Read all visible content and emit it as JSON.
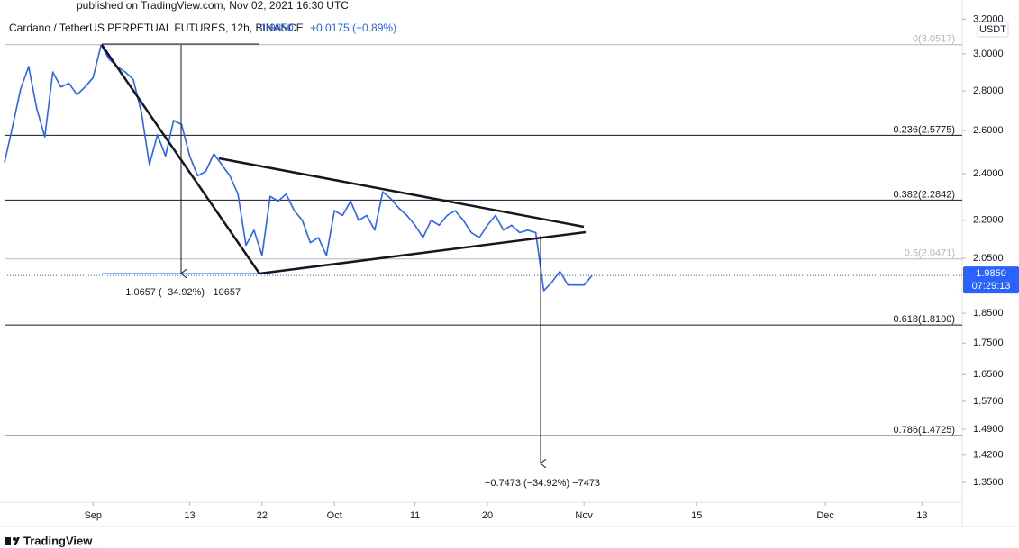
{
  "chart_data": {
    "type": "line",
    "published": "published on TradingView.com, Nov 02, 2021 16:30 UTC",
    "title": "Cardano / TetherUS PERPETUAL FUTURES, 12h, BINANCE",
    "last_price": {
      "value": 1.985,
      "label": "1.9850"
    },
    "change": "+0.0175 (+0.89%)",
    "currency": "USDT",
    "countdown": "07:29:13",
    "brand": "TradingView",
    "log_scale": true,
    "ylim": [
      1.301,
      3.262
    ],
    "yticks": [
      {
        "value": 3.2,
        "label": "3.2000"
      },
      {
        "value": 3.0,
        "label": "3.0000"
      },
      {
        "value": 2.8,
        "label": "2.8000"
      },
      {
        "value": 2.6,
        "label": "2.6000"
      },
      {
        "value": 2.4,
        "label": "2.4000"
      },
      {
        "value": 2.2,
        "label": "2.2000"
      },
      {
        "value": 2.05,
        "label": "2.0500"
      },
      {
        "value": 1.85,
        "label": "1.8500"
      },
      {
        "value": 1.75,
        "label": "1.7500"
      },
      {
        "value": 1.65,
        "label": "1.6500"
      },
      {
        "value": 1.57,
        "label": "1.5700"
      },
      {
        "value": 1.49,
        "label": "1.4900"
      },
      {
        "value": 1.42,
        "label": "1.4200"
      },
      {
        "value": 1.35,
        "label": "1.3500"
      }
    ],
    "xlim": [
      "2021-08-21",
      "2021-12-18"
    ],
    "xticks": [
      {
        "value": "2021-09-01",
        "label": "Sep"
      },
      {
        "value": "2021-09-13",
        "label": "13"
      },
      {
        "value": "2021-09-22",
        "label": "22"
      },
      {
        "value": "2021-10-01",
        "label": "Oct"
      },
      {
        "value": "2021-10-11",
        "label": "11"
      },
      {
        "value": "2021-10-20",
        "label": "20"
      },
      {
        "value": "2021-11-01",
        "label": "Nov"
      },
      {
        "value": "2021-11-15",
        "label": "15"
      },
      {
        "value": "2021-12-01",
        "label": "Dec"
      },
      {
        "value": "2021-12-13",
        "label": "13"
      }
    ],
    "fib_levels": [
      {
        "value": 3.0517,
        "label": "0(3.0517)",
        "color": "#b2b5be"
      },
      {
        "value": 2.5775,
        "label": "0.236(2.5775)",
        "color": "#131722"
      },
      {
        "value": 2.2842,
        "label": "0.382(2.2842)",
        "color": "#131722"
      },
      {
        "value": 2.0471,
        "label": "0.5(2.0471)",
        "color": "#b2b5be"
      },
      {
        "value": 1.81,
        "label": "0.618(1.8100)",
        "color": "#131722"
      },
      {
        "value": 1.4725,
        "label": "0.786(1.4725)",
        "color": "#131722"
      }
    ],
    "annotations": [
      "−1.0657 (−34.92%) −10657",
      "−0.7473 (−34.92%) −7473"
    ],
    "series": [
      {
        "name": "Cardano / TetherUS",
        "color": "#2962ff",
        "x": [
          "2021-08-21",
          "2021-08-22",
          "2021-08-23",
          "2021-08-24",
          "2021-08-25",
          "2021-08-26",
          "2021-08-27",
          "2021-08-28",
          "2021-08-29",
          "2021-08-30",
          "2021-08-31",
          "2021-09-01",
          "2021-09-02",
          "2021-09-03",
          "2021-09-04",
          "2021-09-05",
          "2021-09-06",
          "2021-09-07",
          "2021-09-08",
          "2021-09-09",
          "2021-09-10",
          "2021-09-11",
          "2021-09-12",
          "2021-09-13",
          "2021-09-14",
          "2021-09-15",
          "2021-09-16",
          "2021-09-17",
          "2021-09-18",
          "2021-09-19",
          "2021-09-20",
          "2021-09-21",
          "2021-09-22",
          "2021-09-23",
          "2021-09-24",
          "2021-09-25",
          "2021-09-26",
          "2021-09-27",
          "2021-09-28",
          "2021-09-29",
          "2021-09-30",
          "2021-10-01",
          "2021-10-02",
          "2021-10-03",
          "2021-10-04",
          "2021-10-05",
          "2021-10-06",
          "2021-10-07",
          "2021-10-08",
          "2021-10-09",
          "2021-10-10",
          "2021-10-11",
          "2021-10-12",
          "2021-10-13",
          "2021-10-14",
          "2021-10-15",
          "2021-10-16",
          "2021-10-17",
          "2021-10-18",
          "2021-10-19",
          "2021-10-20",
          "2021-10-21",
          "2021-10-22",
          "2021-10-23",
          "2021-10-24",
          "2021-10-25",
          "2021-10-26",
          "2021-10-27",
          "2021-10-28",
          "2021-10-29",
          "2021-10-30",
          "2021-10-31",
          "2021-11-01",
          "2021-11-02"
        ],
        "values": [
          2.45,
          2.62,
          2.81,
          2.93,
          2.71,
          2.57,
          2.9,
          2.82,
          2.84,
          2.78,
          2.82,
          2.87,
          3.05,
          2.97,
          2.93,
          2.9,
          2.86,
          2.69,
          2.44,
          2.58,
          2.48,
          2.65,
          2.63,
          2.48,
          2.39,
          2.41,
          2.49,
          2.44,
          2.39,
          2.31,
          2.1,
          2.16,
          2.06,
          2.3,
          2.28,
          2.31,
          2.24,
          2.2,
          2.11,
          2.13,
          2.06,
          2.24,
          2.22,
          2.28,
          2.2,
          2.22,
          2.16,
          2.32,
          2.29,
          2.25,
          2.22,
          2.18,
          2.13,
          2.2,
          2.18,
          2.22,
          2.24,
          2.2,
          2.15,
          2.13,
          2.18,
          2.22,
          2.16,
          2.18,
          2.15,
          2.16,
          2.15,
          1.93,
          1.96,
          2.0,
          1.95,
          1.95,
          1.95,
          1.985
        ]
      }
    ]
  }
}
